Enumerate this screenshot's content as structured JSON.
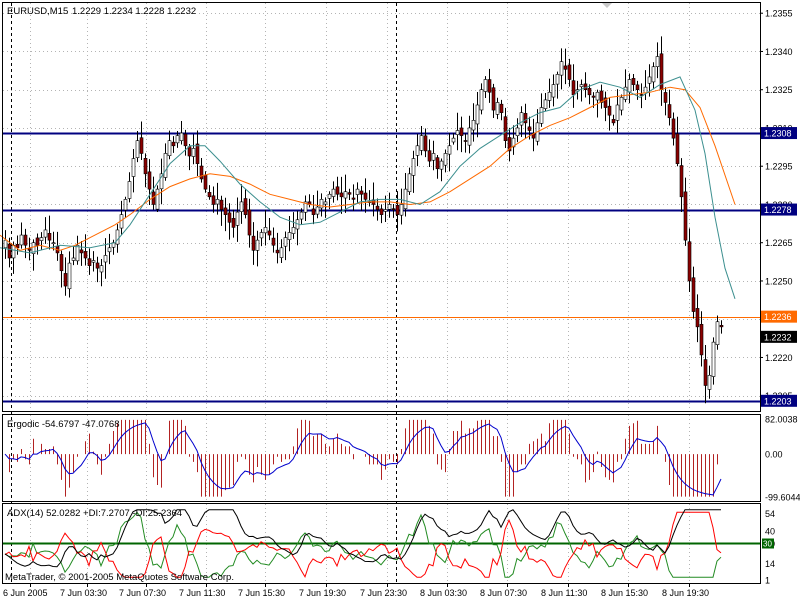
{
  "chart_data": {
    "type": "candlestick",
    "main": {
      "symbol_timeframe": "EURUSD,M15",
      "ohlc_readout": "1.2229 1.2234 1.2228 1.2232",
      "price_labels": [
        "1.2355",
        "1.2340",
        "1.2325",
        "1.2310",
        "1.2295",
        "1.2280",
        "1.2265",
        "1.2250",
        "1.2235",
        "1.2220",
        "1.2205"
      ],
      "ylim": [
        1.2199,
        1.2359
      ],
      "hlines": [
        {
          "price": 1.2308,
          "label": "1.2308",
          "color": "#000080"
        },
        {
          "price": 1.2278,
          "label": "1.2278",
          "color": "#000080"
        },
        {
          "price": 1.2203,
          "label": "1.2203",
          "color": "#000080"
        },
        {
          "price": 1.2236,
          "label": "1.2236",
          "color": "#ff6a00"
        }
      ],
      "current_price": {
        "price": 1.2232,
        "label": "1.2232"
      },
      "series": [
        {
          "name": "close",
          "values": [
            1.2266,
            1.2259,
            1.2264,
            1.2263,
            1.2268,
            1.2264,
            1.2262,
            1.2265,
            1.2264,
            1.2267,
            1.227,
            1.2266,
            1.2265,
            1.2261,
            1.2254,
            1.2248,
            1.2257,
            1.2259,
            1.2264,
            1.2261,
            1.2259,
            1.2256,
            1.2258,
            1.2255,
            1.2256,
            1.226,
            1.2263,
            1.2265,
            1.227,
            1.2276,
            1.2282,
            1.2289,
            1.2298,
            1.2305,
            1.23,
            1.2292,
            1.2286,
            1.228,
            1.2286,
            1.2292,
            1.23,
            1.2305,
            1.2303,
            1.2307,
            1.2308,
            1.2303,
            1.2299,
            1.2302,
            1.2296,
            1.229,
            1.2286,
            1.2283,
            1.228,
            1.2282,
            1.2278,
            1.2276,
            1.2273,
            1.2271,
            1.2277,
            1.2281,
            1.2276,
            1.2268,
            1.2262,
            1.2266,
            1.2269,
            1.2271,
            1.2268,
            1.2264,
            1.2261,
            1.2263,
            1.2267,
            1.2269,
            1.2271,
            1.2274,
            1.2277,
            1.2281,
            1.228,
            1.2276,
            1.2279,
            1.2282,
            1.2281,
            1.2284,
            1.2286,
            1.2284,
            1.2283,
            1.2285,
            1.2284,
            1.2282,
            1.2286,
            1.2284,
            1.2282,
            1.2281,
            1.228,
            1.2278,
            1.2276,
            1.2278,
            1.228,
            1.2278,
            1.2276,
            1.228,
            1.2286,
            1.2292,
            1.2298,
            1.2303,
            1.2307,
            1.2301,
            1.2297,
            1.23,
            1.2294,
            1.2297,
            1.23,
            1.2303,
            1.2306,
            1.2309,
            1.2307,
            1.2305,
            1.231,
            1.2313,
            1.2319,
            1.2325,
            1.2329,
            1.2324,
            1.2317,
            1.232,
            1.2316,
            1.2305,
            1.2301,
            1.2306,
            1.231,
            1.2316,
            1.2312,
            1.2309,
            1.2306,
            1.2312,
            1.2318,
            1.2321,
            1.2324,
            1.2327,
            1.2331,
            1.2336,
            1.2333,
            1.2329,
            1.2323,
            1.2325,
            1.2327,
            1.2325,
            1.2323,
            1.2322,
            1.2324,
            1.232,
            1.2318,
            1.2315,
            1.2312,
            1.2319,
            1.2322,
            1.2326,
            1.2329,
            1.2327,
            1.2325,
            1.2323,
            1.2326,
            1.233,
            1.2334,
            1.2338,
            1.2325,
            1.232,
            1.2314,
            1.2306,
            1.2296,
            1.2283,
            1.2266,
            1.225,
            1.2238,
            1.2232,
            1.2221,
            1.2209,
            1.2213,
            1.2226,
            1.2234,
            1.2232
          ]
        },
        {
          "name": "ma_orange",
          "values": [
            [
              0,
              1.2268
            ],
            [
              20,
              1.2262
            ],
            [
              40,
              1.2264
            ],
            [
              60,
              1.2262
            ],
            [
              75,
              1.2264
            ],
            [
              95,
              1.2268
            ],
            [
              115,
              1.2272
            ],
            [
              130,
              1.2276
            ],
            [
              150,
              1.2282
            ],
            [
              170,
              1.2287
            ],
            [
              190,
              1.229
            ],
            [
              210,
              1.2292
            ],
            [
              230,
              1.2291
            ],
            [
              250,
              1.2288
            ],
            [
              270,
              1.2284
            ],
            [
              290,
              1.2282
            ],
            [
              310,
              1.228
            ],
            [
              330,
              1.2279
            ],
            [
              350,
              1.228
            ],
            [
              370,
              1.2281
            ],
            [
              390,
              1.2281
            ],
            [
              410,
              1.228
            ],
            [
              430,
              1.2281
            ],
            [
              450,
              1.2285
            ],
            [
              470,
              1.229
            ],
            [
              490,
              1.2295
            ],
            [
              510,
              1.2302
            ],
            [
              530,
              1.2307
            ],
            [
              550,
              1.2311
            ],
            [
              570,
              1.2314
            ],
            [
              590,
              1.2318
            ],
            [
              610,
              1.2322
            ],
            [
              630,
              1.2323
            ],
            [
              650,
              1.2324
            ],
            [
              670,
              1.2326
            ],
            [
              685,
              1.2325
            ],
            [
              700,
              1.2318
            ],
            [
              715,
              1.2303
            ],
            [
              735,
              1.228
            ]
          ]
        },
        {
          "name": "ma_teal",
          "values": [
            [
              0,
              1.2263
            ],
            [
              30,
              1.2261
            ],
            [
              60,
              1.2264
            ],
            [
              90,
              1.2263
            ],
            [
              115,
              1.2265
            ],
            [
              130,
              1.2272
            ],
            [
              150,
              1.2284
            ],
            [
              170,
              1.2296
            ],
            [
              190,
              1.2303
            ],
            [
              205,
              1.2303
            ],
            [
              220,
              1.2297
            ],
            [
              240,
              1.2288
            ],
            [
              260,
              1.2281
            ],
            [
              280,
              1.2275
            ],
            [
              300,
              1.2272
            ],
            [
              320,
              1.2273
            ],
            [
              340,
              1.2277
            ],
            [
              360,
              1.2281
            ],
            [
              380,
              1.2282
            ],
            [
              400,
              1.2282
            ],
            [
              420,
              1.228
            ],
            [
              440,
              1.2285
            ],
            [
              460,
              1.2295
            ],
            [
              480,
              1.2302
            ],
            [
              500,
              1.2307
            ],
            [
              520,
              1.2312
            ],
            [
              540,
              1.2316
            ],
            [
              560,
              1.2318
            ],
            [
              580,
              1.2325
            ],
            [
              600,
              1.2328
            ],
            [
              620,
              1.2326
            ],
            [
              640,
              1.2322
            ],
            [
              660,
              1.2327
            ],
            [
              680,
              1.233
            ],
            [
              695,
              1.2317
            ],
            [
              705,
              1.23
            ],
            [
              715,
              1.2275
            ],
            [
              725,
              1.2255
            ],
            [
              735,
              1.2243
            ]
          ]
        }
      ]
    },
    "ergodic": {
      "title": "Ergodic -54.6797 -47.0768",
      "axis_labels": [
        "82.0038",
        "0.00",
        "-99.6044"
      ],
      "ylim": [
        -100,
        82
      ]
    },
    "adx": {
      "title": "ADX(14) 52.0282 +DI:7.2707 -DI:25.2364",
      "axis_labels": [
        "54",
        "40",
        "30",
        "14",
        "1"
      ],
      "level": "30",
      "ylim": [
        0,
        60
      ]
    },
    "x_labels": [
      "6 Jun 2005",
      "7 Jun 03:30",
      "7 Jun 07:30",
      "7 Jun 11:30",
      "7 Jun 15:30",
      "7 Jun 19:30",
      "7 Jun 23:30",
      "8 Jun 03:30",
      "8 Jun 07:30",
      "8 Jun 11:30",
      "8 Jun 15:30",
      "8 Jun 19:30"
    ],
    "footer": "MetaTrader, © 2001-2005 MetaQuotes Software Corp.",
    "colors": {
      "bull": "#ffffff",
      "bear": "#8b0000",
      "hline": "#000080",
      "orange": "#ff6a00",
      "teal": "#3c8f8f",
      "grid": "#b4b4b4",
      "ergo_hist": "#b22222",
      "ergo_sig": "#0000cd",
      "adx": "#000000",
      "pdi": "#228b22",
      "mdi": "#ff0000",
      "adx_level": "#006400"
    }
  }
}
